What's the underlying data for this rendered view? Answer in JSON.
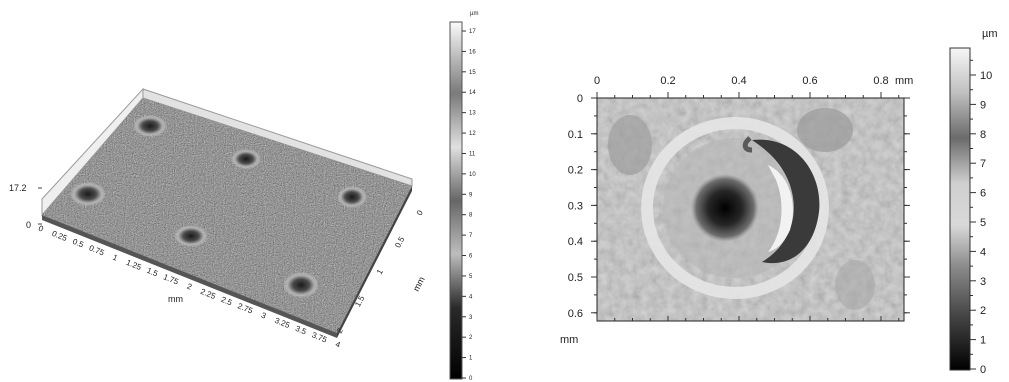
{
  "left_panel": {
    "z_max_label": "17.2",
    "z_zero_label": "0",
    "x_ticks": [
      "0",
      "0.25",
      "0.5",
      "0.75",
      "1",
      "1.25",
      "1.5",
      "1.75",
      "2",
      "2.25",
      "2.5",
      "2.75",
      "3",
      "3.25",
      "3.5",
      "3.75",
      "4"
    ],
    "x_axis_label": "mm",
    "y_ticks": [
      "0",
      "0.5",
      "1",
      "1.5",
      "2"
    ],
    "y_axis_label": "mm",
    "colorbar": {
      "unit": "µm",
      "ticks": [
        "0",
        "1",
        "2",
        "3",
        "4",
        "5",
        "6",
        "7",
        "8",
        "9",
        "10",
        "11",
        "12",
        "13",
        "14",
        "15",
        "16",
        "17"
      ]
    }
  },
  "right_panel": {
    "x_ticks": [
      "0",
      "0.2",
      "0.4",
      "0.6",
      "0.8"
    ],
    "x_unit": "mm",
    "y_ticks": [
      "0",
      "0.1",
      "0.2",
      "0.3",
      "0.4",
      "0.5",
      "0.6"
    ],
    "y_unit": "mm",
    "colorbar": {
      "unit": "µm",
      "ticks": [
        "0",
        "1",
        "2",
        "3",
        "4",
        "5",
        "6",
        "7",
        "8",
        "9",
        "10"
      ]
    }
  }
}
